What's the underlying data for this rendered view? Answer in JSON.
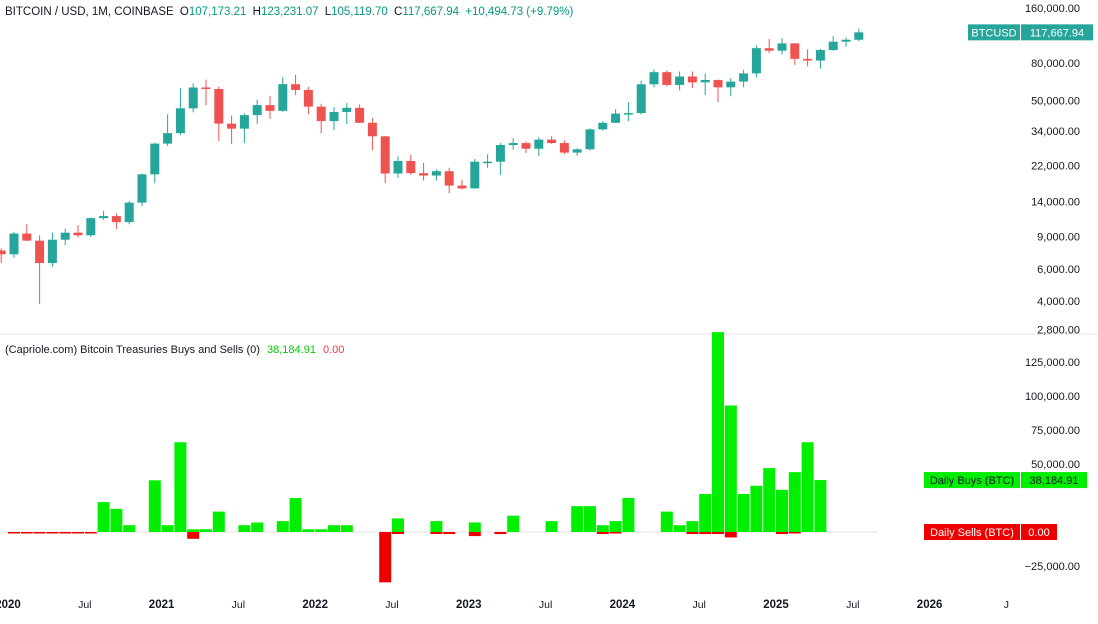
{
  "header": {
    "symbol": "BITCOIN / USD, 1M, COINBASE",
    "o_label": "O",
    "o_value": "107,173.21",
    "h_label": "H",
    "h_value": "123,231.07",
    "l_label": "L",
    "l_value": "105,119.70",
    "c_label": "C",
    "c_value": "117,667.94",
    "change": "+10,494.73 (+9.79%)"
  },
  "indicator": {
    "title": "(Capriole.com) Bitcoin Treasuries Buys and Sells (0)",
    "buys_value": "38,184.91",
    "sells_value": "0.00"
  },
  "colors": {
    "up": "#26a69a",
    "down": "#ef5350",
    "buy": "#00ee00",
    "sell": "#ee0000",
    "text_up": "#089981",
    "text_down": "#f23645"
  },
  "chart_data": [
    {
      "type": "candlestick",
      "scale": "log",
      "price_axis_ticks": [
        {
          "value": 160000,
          "label": "160,000.00"
        },
        {
          "value": 80000,
          "label": "80,000.00"
        },
        {
          "value": 50000,
          "label": "50,000.00"
        },
        {
          "value": 34000,
          "label": "34,000.00"
        },
        {
          "value": 22000,
          "label": "22,000.00"
        },
        {
          "value": 14000,
          "label": "14,000.00"
        },
        {
          "value": 9000,
          "label": "9,000.00"
        },
        {
          "value": 6000,
          "label": "6,000.00"
        },
        {
          "value": 4000,
          "label": "4,000.00"
        },
        {
          "value": 2800,
          "label": "2,800.00"
        }
      ],
      "last_price_label": "BTCUSD",
      "last_price_value": "117,667.94",
      "time_axis_labels": [
        "2020",
        "Jul",
        "2021",
        "Jul",
        "2022",
        "Jul",
        "2023",
        "Jul",
        "2024",
        "Jul",
        "2025",
        "Jul",
        "2026",
        "J"
      ],
      "candles": [
        {
          "t": "2019-12",
          "o": 7550,
          "h": 7750,
          "l": 6450,
          "c": 7200
        },
        {
          "t": "2020-01",
          "o": 7200,
          "h": 9550,
          "l": 6900,
          "c": 9350
        },
        {
          "t": "2020-02",
          "o": 9350,
          "h": 10500,
          "l": 8500,
          "c": 8550
        },
        {
          "t": "2020-03",
          "o": 8550,
          "h": 9150,
          "l": 3850,
          "c": 6450
        },
        {
          "t": "2020-04",
          "o": 6450,
          "h": 9450,
          "l": 6150,
          "c": 8650
        },
        {
          "t": "2020-05",
          "o": 8650,
          "h": 9950,
          "l": 8100,
          "c": 9450
        },
        {
          "t": "2020-06",
          "o": 9450,
          "h": 10400,
          "l": 8900,
          "c": 9150
        },
        {
          "t": "2020-07",
          "o": 9150,
          "h": 11450,
          "l": 8950,
          "c": 11350
        },
        {
          "t": "2020-08",
          "o": 11350,
          "h": 12450,
          "l": 11100,
          "c": 11650
        },
        {
          "t": "2020-09",
          "o": 11650,
          "h": 12050,
          "l": 9900,
          "c": 10800
        },
        {
          "t": "2020-10",
          "o": 10800,
          "h": 14100,
          "l": 10500,
          "c": 13800
        },
        {
          "t": "2020-11",
          "o": 13800,
          "h": 19900,
          "l": 13200,
          "c": 19700
        },
        {
          "t": "2020-12",
          "o": 19700,
          "h": 29300,
          "l": 17600,
          "c": 29000
        },
        {
          "t": "2021-01",
          "o": 29000,
          "h": 41900,
          "l": 28100,
          "c": 33100
        },
        {
          "t": "2021-02",
          "o": 33100,
          "h": 58300,
          "l": 32300,
          "c": 45200
        },
        {
          "t": "2021-03",
          "o": 45200,
          "h": 61800,
          "l": 43000,
          "c": 58800
        },
        {
          "t": "2021-04",
          "o": 58800,
          "h": 64900,
          "l": 47000,
          "c": 57700
        },
        {
          "t": "2021-05",
          "o": 57700,
          "h": 59500,
          "l": 30000,
          "c": 37300
        },
        {
          "t": "2021-06",
          "o": 37300,
          "h": 41300,
          "l": 28800,
          "c": 35000
        },
        {
          "t": "2021-07",
          "o": 35000,
          "h": 42300,
          "l": 29300,
          "c": 41500
        },
        {
          "t": "2021-08",
          "o": 41500,
          "h": 50500,
          "l": 37300,
          "c": 47100
        },
        {
          "t": "2021-09",
          "o": 47100,
          "h": 52900,
          "l": 39600,
          "c": 43800
        },
        {
          "t": "2021-10",
          "o": 43800,
          "h": 67000,
          "l": 43300,
          "c": 61300
        },
        {
          "t": "2021-11",
          "o": 61300,
          "h": 69000,
          "l": 53300,
          "c": 57000
        },
        {
          "t": "2021-12",
          "o": 57000,
          "h": 59100,
          "l": 42000,
          "c": 46200
        },
        {
          "t": "2022-01",
          "o": 46200,
          "h": 47900,
          "l": 33000,
          "c": 38500
        },
        {
          "t": "2022-02",
          "o": 38500,
          "h": 45800,
          "l": 34300,
          "c": 43200
        },
        {
          "t": "2022-03",
          "o": 43200,
          "h": 48200,
          "l": 37100,
          "c": 45500
        },
        {
          "t": "2022-04",
          "o": 45500,
          "h": 47400,
          "l": 37600,
          "c": 37700
        },
        {
          "t": "2022-05",
          "o": 37700,
          "h": 40000,
          "l": 26700,
          "c": 31800
        },
        {
          "t": "2022-06",
          "o": 31800,
          "h": 31900,
          "l": 17600,
          "c": 19900
        },
        {
          "t": "2022-07",
          "o": 19900,
          "h": 24700,
          "l": 18800,
          "c": 23300
        },
        {
          "t": "2022-08",
          "o": 23300,
          "h": 25200,
          "l": 19600,
          "c": 20000
        },
        {
          "t": "2022-09",
          "o": 20000,
          "h": 22800,
          "l": 18200,
          "c": 19400
        },
        {
          "t": "2022-10",
          "o": 19400,
          "h": 21000,
          "l": 18200,
          "c": 20500
        },
        {
          "t": "2022-11",
          "o": 20500,
          "h": 21400,
          "l": 15500,
          "c": 17100
        },
        {
          "t": "2022-12",
          "o": 17100,
          "h": 18400,
          "l": 16300,
          "c": 16500
        },
        {
          "t": "2023-01",
          "o": 16500,
          "h": 23900,
          "l": 16500,
          "c": 23100
        },
        {
          "t": "2023-02",
          "o": 23100,
          "h": 25300,
          "l": 21400,
          "c": 23100
        },
        {
          "t": "2023-03",
          "o": 23100,
          "h": 29200,
          "l": 19600,
          "c": 28500
        },
        {
          "t": "2023-04",
          "o": 28500,
          "h": 31000,
          "l": 26900,
          "c": 29200
        },
        {
          "t": "2023-05",
          "o": 29200,
          "h": 29800,
          "l": 25800,
          "c": 27200
        },
        {
          "t": "2023-06",
          "o": 27200,
          "h": 31400,
          "l": 24800,
          "c": 30500
        },
        {
          "t": "2023-07",
          "o": 30500,
          "h": 31800,
          "l": 28900,
          "c": 29200
        },
        {
          "t": "2023-08",
          "o": 29200,
          "h": 30200,
          "l": 25400,
          "c": 25900
        },
        {
          "t": "2023-09",
          "o": 25900,
          "h": 27400,
          "l": 24900,
          "c": 27000
        },
        {
          "t": "2023-10",
          "o": 27000,
          "h": 35200,
          "l": 26600,
          "c": 34700
        },
        {
          "t": "2023-11",
          "o": 34700,
          "h": 38400,
          "l": 34100,
          "c": 37700
        },
        {
          "t": "2023-12",
          "o": 37700,
          "h": 44700,
          "l": 37600,
          "c": 42300
        },
        {
          "t": "2024-01",
          "o": 42300,
          "h": 48900,
          "l": 38500,
          "c": 42600
        },
        {
          "t": "2024-02",
          "o": 42600,
          "h": 64000,
          "l": 41900,
          "c": 61200
        },
        {
          "t": "2024-03",
          "o": 61200,
          "h": 73800,
          "l": 59000,
          "c": 71300
        },
        {
          "t": "2024-04",
          "o": 71300,
          "h": 72800,
          "l": 59500,
          "c": 60700
        },
        {
          "t": "2024-05",
          "o": 60700,
          "h": 71900,
          "l": 56600,
          "c": 67500
        },
        {
          "t": "2024-06",
          "o": 67500,
          "h": 72000,
          "l": 58400,
          "c": 62700
        },
        {
          "t": "2024-07",
          "o": 62700,
          "h": 70000,
          "l": 53500,
          "c": 64600
        },
        {
          "t": "2024-08",
          "o": 64600,
          "h": 65000,
          "l": 49000,
          "c": 58900
        },
        {
          "t": "2024-09",
          "o": 58900,
          "h": 66000,
          "l": 52600,
          "c": 63300
        },
        {
          "t": "2024-10",
          "o": 63300,
          "h": 73600,
          "l": 58900,
          "c": 70200
        },
        {
          "t": "2024-11",
          "o": 70200,
          "h": 99600,
          "l": 66800,
          "c": 96400
        },
        {
          "t": "2024-12",
          "o": 96400,
          "h": 108300,
          "l": 90500,
          "c": 93400
        },
        {
          "t": "2025-01",
          "o": 93400,
          "h": 109400,
          "l": 89200,
          "c": 102400
        },
        {
          "t": "2025-02",
          "o": 102400,
          "h": 102500,
          "l": 78200,
          "c": 84300
        },
        {
          "t": "2025-03",
          "o": 84300,
          "h": 95000,
          "l": 76600,
          "c": 82500
        },
        {
          "t": "2025-04",
          "o": 82500,
          "h": 95700,
          "l": 74500,
          "c": 94200
        },
        {
          "t": "2025-05",
          "o": 94200,
          "h": 111900,
          "l": 93300,
          "c": 104600
        },
        {
          "t": "2025-06",
          "o": 104600,
          "h": 110500,
          "l": 98200,
          "c": 107200
        },
        {
          "t": "2025-07",
          "o": 107173.21,
          "h": 123231.07,
          "l": 105119.7,
          "c": 117667.94
        }
      ]
    },
    {
      "type": "bar",
      "value_axis_ticks": [
        {
          "value": 125000,
          "label": "125,000.00"
        },
        {
          "value": 100000,
          "label": "100,000.00"
        },
        {
          "value": 75000,
          "label": "75,000.00"
        },
        {
          "value": 50000,
          "label": "50,000.00"
        },
        {
          "value": -25000,
          "label": "−25,000.00"
        }
      ],
      "ylim": [
        -37000,
        145000
      ],
      "series": [
        {
          "name": "Daily Buys (BTC)",
          "last_value": "38,184.91",
          "values": [
            0,
            0,
            0,
            0,
            0,
            0,
            0,
            22000,
            17000,
            5000,
            0,
            38000,
            5000,
            66000,
            2000,
            2000,
            15000,
            0,
            5000,
            7000,
            0,
            8000,
            25000,
            2000,
            2000,
            5000,
            5000,
            0,
            0,
            0,
            10000,
            0,
            0,
            8000,
            0,
            0,
            7000,
            0,
            0,
            12000,
            0,
            0,
            8000,
            0,
            19000,
            19000,
            5000,
            8000,
            25000,
            0,
            0,
            15000,
            5000,
            8000,
            28000,
            147000,
            93000,
            28000,
            34000,
            47000,
            31000,
            44000,
            66000,
            38184.91
          ]
        },
        {
          "name": "Daily Sells (BTC)",
          "last_value": "0.00",
          "values": [
            -500,
            -500,
            -500,
            -500,
            -500,
            -500,
            -500,
            0,
            0,
            0,
            0,
            0,
            0,
            0,
            -5000,
            0,
            0,
            0,
            0,
            0,
            0,
            0,
            0,
            0,
            0,
            0,
            0,
            0,
            0,
            -37000,
            -1500,
            0,
            0,
            -1500,
            -1500,
            0,
            -3000,
            0,
            -1500,
            0,
            0,
            0,
            0,
            0,
            0,
            0,
            -1500,
            -1000,
            0,
            0,
            0,
            0,
            0,
            -1500,
            -1500,
            -1500,
            -4000,
            0,
            0,
            0,
            -1500,
            -1000,
            0,
            0
          ]
        }
      ]
    }
  ]
}
